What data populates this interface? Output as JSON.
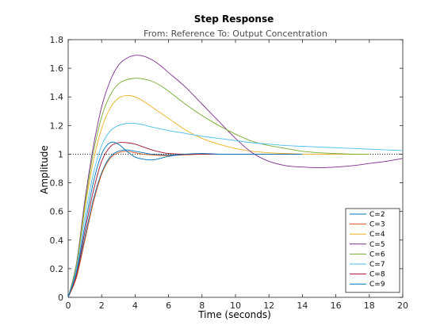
{
  "chart_data": {
    "type": "line",
    "title": "Step Response",
    "subtitle": "From: Reference  To: Output Concentration",
    "xlabel": "Time (seconds)",
    "ylabel": "Amplitude",
    "xlim": [
      0,
      20
    ],
    "ylim": [
      0,
      1.8
    ],
    "xticks": [
      0,
      2,
      4,
      6,
      8,
      10,
      12,
      14,
      16,
      18,
      20
    ],
    "yticks": [
      0,
      0.2,
      0.4,
      0.6,
      0.8,
      1,
      1.2,
      1.4,
      1.6,
      1.8
    ],
    "xtick_labels": [
      "0",
      "2",
      "4",
      "6",
      "8",
      "10",
      "12",
      "14",
      "16",
      "18",
      "20"
    ],
    "ytick_labels": [
      "0",
      "0.2",
      "0.4",
      "0.6",
      "0.8",
      "1",
      "1.2",
      "1.4",
      "1.6",
      "1.8"
    ],
    "reference_line": {
      "y": 1,
      "style": "dotted",
      "color": "#000000"
    },
    "grid": false,
    "legend_position": "bottom-right",
    "series": [
      {
        "name": "C=2",
        "color": "#0072BD",
        "x": [
          0,
          0.5,
          1,
          1.5,
          2,
          2.5,
          3,
          3.5,
          4,
          4.5,
          5,
          6,
          7,
          8,
          9,
          10,
          12,
          14
        ],
        "y": [
          0,
          0.15,
          0.42,
          0.68,
          0.87,
          0.98,
          1.02,
          1.03,
          1.02,
          1.01,
          1.0,
          0.995,
          0.998,
          1.0,
          1.0,
          1.0,
          1.0,
          1.0
        ]
      },
      {
        "name": "C=3",
        "color": "#D95319",
        "x": [
          0,
          0.5,
          1,
          1.5,
          2,
          2.5,
          3,
          3.5,
          4,
          4.5,
          5,
          6,
          7,
          8,
          9,
          10,
          12,
          14
        ],
        "y": [
          0,
          0.14,
          0.4,
          0.66,
          0.86,
          0.97,
          1.01,
          1.02,
          1.01,
          1.0,
          0.995,
          0.99,
          0.995,
          1.0,
          1.0,
          1.0,
          1.0,
          1.0
        ]
      },
      {
        "name": "C=4",
        "color": "#EDB120",
        "x": [
          0,
          0.5,
          1,
          1.5,
          2,
          2.5,
          3,
          3.5,
          4,
          4.5,
          5,
          6,
          7,
          8,
          9,
          10,
          11,
          12,
          13,
          14,
          15,
          16,
          17,
          18
        ],
        "y": [
          0,
          0.22,
          0.62,
          0.95,
          1.18,
          1.32,
          1.39,
          1.41,
          1.4,
          1.37,
          1.33,
          1.25,
          1.17,
          1.11,
          1.07,
          1.04,
          1.02,
          1.01,
          1.005,
          1.0,
          1.0,
          1.0,
          1.0,
          1.0
        ]
      },
      {
        "name": "C=5",
        "color": "#7E2F8E",
        "x": [
          0,
          0.5,
          1,
          1.5,
          2,
          2.5,
          3,
          3.5,
          4,
          4.5,
          5,
          5.5,
          6,
          7,
          8,
          9,
          10,
          11,
          12,
          13,
          14,
          15,
          16,
          17,
          18,
          19,
          20
        ],
        "y": [
          0,
          0.24,
          0.68,
          1.05,
          1.33,
          1.51,
          1.62,
          1.67,
          1.69,
          1.685,
          1.66,
          1.62,
          1.57,
          1.47,
          1.35,
          1.23,
          1.11,
          1.01,
          0.95,
          0.92,
          0.91,
          0.905,
          0.91,
          0.92,
          0.935,
          0.95,
          0.97
        ]
      },
      {
        "name": "C=6",
        "color": "#77AC30",
        "x": [
          0,
          0.5,
          1,
          1.5,
          2,
          2.5,
          3,
          3.5,
          4,
          4.5,
          5,
          5.5,
          6,
          7,
          8,
          9,
          10,
          11,
          12,
          13,
          14,
          15,
          16,
          17,
          18
        ],
        "y": [
          0,
          0.23,
          0.65,
          1.01,
          1.26,
          1.41,
          1.49,
          1.52,
          1.53,
          1.525,
          1.51,
          1.48,
          1.44,
          1.35,
          1.27,
          1.2,
          1.14,
          1.09,
          1.06,
          1.04,
          1.02,
          1.01,
          1.005,
          1.0,
          1.0
        ]
      },
      {
        "name": "C=7",
        "color": "#4DBEEE",
        "x": [
          0,
          0.5,
          1,
          1.5,
          2,
          2.5,
          3,
          3.5,
          4,
          4.5,
          5,
          6,
          7,
          8,
          9,
          10,
          11,
          12,
          13,
          14,
          15,
          16,
          17,
          18,
          19,
          20
        ],
        "y": [
          0,
          0.2,
          0.56,
          0.86,
          1.06,
          1.16,
          1.2,
          1.215,
          1.215,
          1.205,
          1.19,
          1.165,
          1.145,
          1.125,
          1.11,
          1.095,
          1.08,
          1.07,
          1.06,
          1.055,
          1.05,
          1.045,
          1.04,
          1.035,
          1.03,
          1.025
        ]
      },
      {
        "name": "C=8",
        "color": "#A2142F",
        "x": [
          0,
          0.5,
          1,
          1.5,
          2,
          2.5,
          3,
          3.5,
          4,
          4.5,
          5,
          5.5,
          6,
          7,
          8,
          9,
          10,
          12,
          14
        ],
        "y": [
          0,
          0.16,
          0.46,
          0.74,
          0.95,
          1.05,
          1.08,
          1.08,
          1.07,
          1.05,
          1.03,
          1.015,
          1.005,
          1.0,
          1.0,
          1.0,
          1.0,
          1.0,
          1.0
        ]
      },
      {
        "name": "C=9",
        "color": "#0072BD",
        "x": [
          0,
          0.5,
          1,
          1.5,
          2,
          2.5,
          3,
          3.5,
          4,
          4.5,
          5,
          5.5,
          6,
          7,
          8,
          9,
          10,
          12,
          14
        ],
        "y": [
          0,
          0.18,
          0.5,
          0.8,
          1.0,
          1.08,
          1.07,
          1.02,
          0.98,
          0.965,
          0.96,
          0.97,
          0.985,
          1.0,
          1.005,
          1.0,
          1.0,
          1.0,
          1.0
        ]
      }
    ]
  }
}
